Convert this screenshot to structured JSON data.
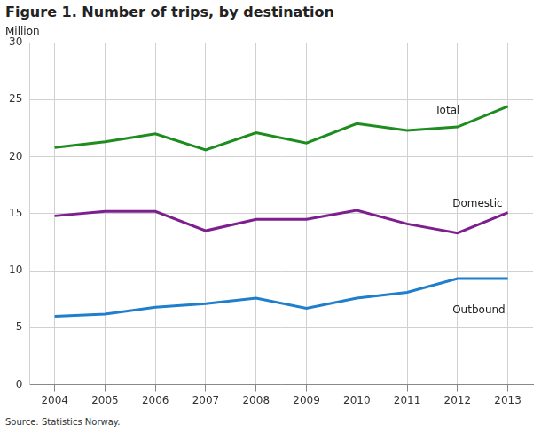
{
  "chart_data": {
    "type": "line",
    "title": "Figure 1. Number of trips, by destination",
    "ylabel": "Million",
    "source": "Source: Statistics Norway.",
    "categories": [
      "2004",
      "2005",
      "2006",
      "2007",
      "2008",
      "2009",
      "2010",
      "2011",
      "2012",
      "2013"
    ],
    "series": [
      {
        "name": "Total",
        "color": "#1e8c1e",
        "values": [
          20.8,
          21.3,
          22.0,
          20.6,
          22.1,
          21.2,
          22.9,
          22.3,
          22.6,
          24.4
        ]
      },
      {
        "name": "Domestic",
        "color": "#7d1f8e",
        "values": [
          14.8,
          15.2,
          15.2,
          13.5,
          14.5,
          14.5,
          15.3,
          14.1,
          13.3,
          15.1
        ]
      },
      {
        "name": "Outbound",
        "color": "#1f7fcc",
        "values": [
          6.0,
          6.2,
          6.8,
          7.1,
          7.6,
          6.7,
          7.6,
          8.1,
          9.3,
          9.3
        ]
      }
    ],
    "ylim": [
      0,
      30
    ],
    "yticks": [
      0,
      5,
      10,
      15,
      20,
      25,
      30
    ],
    "grid": true
  }
}
